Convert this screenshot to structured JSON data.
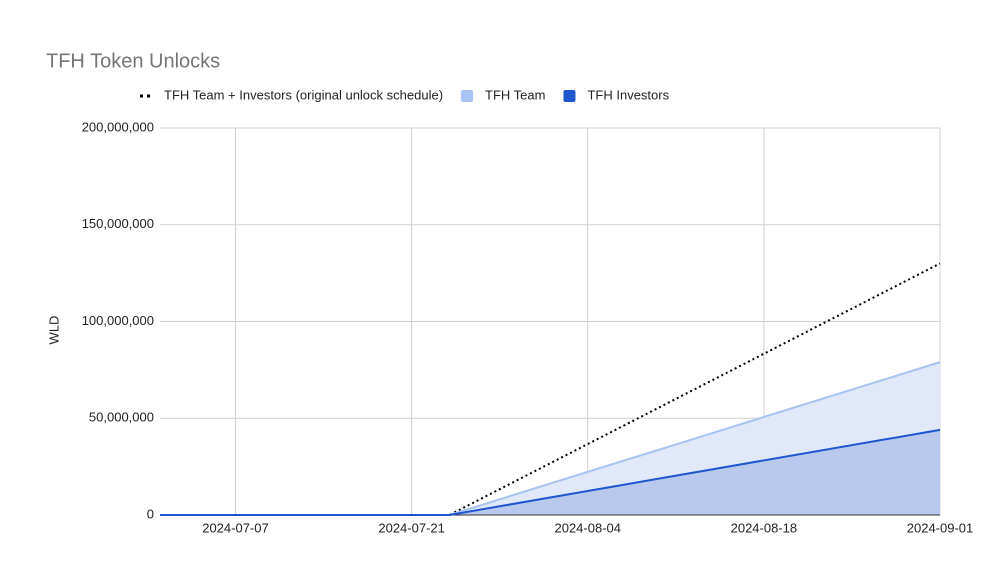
{
  "chart_data": {
    "type": "area",
    "title": "TFH Token Unlocks",
    "y_label": "WLD",
    "x": [
      "2024-07-01",
      "2024-07-24",
      "2024-09-01"
    ],
    "xlim": [
      "2024-07-01",
      "2024-09-01"
    ],
    "xticks": [
      "2024-07-07",
      "2024-07-21",
      "2024-08-04",
      "2024-08-18",
      "2024-09-01"
    ],
    "ylim": [
      0,
      200000000
    ],
    "yticks": [
      0,
      {
        "value": 50000000,
        "label": "50,000,000"
      },
      {
        "value": 100000000,
        "label": "100,000,000"
      },
      {
        "value": 150000000,
        "label": "150,000,000"
      },
      {
        "value": 200000000,
        "label": "200,000,000"
      }
    ],
    "grid": true,
    "stacked": true,
    "legend": "top",
    "series": [
      {
        "name": "TFH Team + Investors (original unlock schedule)",
        "color": "#000000",
        "style": "dotted",
        "values": [
          0,
          0,
          130000000
        ]
      },
      {
        "name": "TFH Team",
        "color": "#a8c3f1",
        "fill": "#e0e8f9",
        "values": [
          0,
          0,
          35000000
        ]
      },
      {
        "name": "TFH Investors",
        "color": "#1f55cf",
        "fill": "#b9c9ee",
        "values": [
          0,
          0,
          44000000
        ]
      }
    ]
  }
}
